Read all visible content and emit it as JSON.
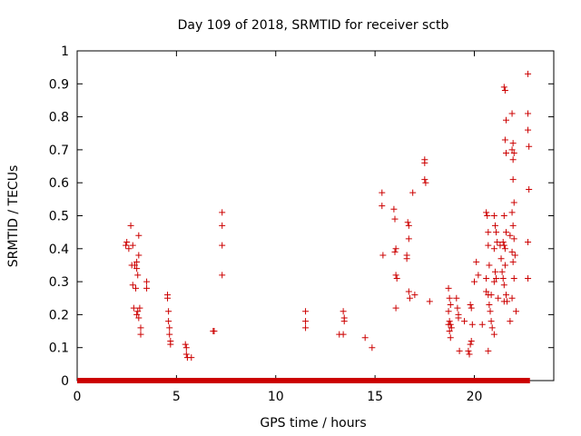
{
  "chart_data": {
    "type": "scatter",
    "title": "Day 109 of 2018, SRMTID for receiver sctb",
    "xlabel": "GPS time / hours",
    "ylabel": "SRMTID / TECUs",
    "xlim": [
      0,
      24
    ],
    "ylim": [
      0,
      1
    ],
    "x_ticks": [
      0,
      5,
      10,
      15,
      20
    ],
    "x_tick_labels": [
      "0",
      "5",
      "10",
      "15",
      "20"
    ],
    "y_ticks": [
      0,
      0.1,
      0.2,
      0.3,
      0.4,
      0.5,
      0.6,
      0.7,
      0.8,
      0.9,
      1
    ],
    "y_tick_labels": [
      "0",
      "0.1",
      "0.2",
      "0.3",
      "0.4",
      "0.5",
      "0.6",
      "0.7",
      "0.8",
      "0.9",
      "1"
    ],
    "grid": false,
    "marker": "+",
    "color": "#cc0000",
    "zero_baseline_range": [
      0,
      22.8
    ],
    "series": [
      {
        "name": "sctb",
        "points": [
          [
            2.45,
            0.41
          ],
          [
            2.5,
            0.42
          ],
          [
            2.7,
            0.47
          ],
          [
            2.75,
            0.35
          ],
          [
            2.8,
            0.29
          ],
          [
            2.85,
            0.22
          ],
          [
            2.9,
            0.35
          ],
          [
            2.95,
            0.28
          ],
          [
            3.0,
            0.36
          ],
          [
            3.0,
            0.34
          ],
          [
            3.05,
            0.32
          ],
          [
            3.05,
            0.21
          ],
          [
            3.1,
            0.38
          ],
          [
            3.1,
            0.44
          ],
          [
            3.1,
            0.19
          ],
          [
            3.15,
            0.22
          ],
          [
            3.2,
            0.16
          ],
          [
            3.2,
            0.14
          ],
          [
            3.5,
            0.3
          ],
          [
            3.5,
            0.28
          ],
          [
            2.6,
            0.4
          ],
          [
            2.8,
            0.41
          ],
          [
            3.0,
            0.2
          ],
          [
            4.55,
            0.26
          ],
          [
            4.55,
            0.25
          ],
          [
            4.6,
            0.21
          ],
          [
            4.6,
            0.18
          ],
          [
            4.65,
            0.16
          ],
          [
            4.65,
            0.14
          ],
          [
            4.7,
            0.12
          ],
          [
            4.7,
            0.11
          ],
          [
            5.45,
            0.11
          ],
          [
            5.5,
            0.1
          ],
          [
            5.5,
            0.08
          ],
          [
            5.55,
            0.07
          ],
          [
            5.75,
            0.07
          ],
          [
            6.85,
            0.15
          ],
          [
            6.9,
            0.15
          ],
          [
            7.3,
            0.51
          ],
          [
            7.3,
            0.47
          ],
          [
            7.3,
            0.41
          ],
          [
            7.3,
            0.32
          ],
          [
            11.5,
            0.21
          ],
          [
            11.5,
            0.18
          ],
          [
            11.5,
            0.16
          ],
          [
            13.2,
            0.14
          ],
          [
            13.4,
            0.21
          ],
          [
            13.45,
            0.19
          ],
          [
            13.45,
            0.18
          ],
          [
            13.4,
            0.14
          ],
          [
            14.5,
            0.13
          ],
          [
            14.85,
            0.1
          ],
          [
            15.35,
            0.57
          ],
          [
            15.35,
            0.53
          ],
          [
            15.4,
            0.38
          ],
          [
            15.95,
            0.52
          ],
          [
            16.0,
            0.49
          ],
          [
            16.0,
            0.39
          ],
          [
            16.05,
            0.4
          ],
          [
            16.05,
            0.32
          ],
          [
            16.1,
            0.31
          ],
          [
            16.05,
            0.22
          ],
          [
            16.6,
            0.38
          ],
          [
            16.65,
            0.48
          ],
          [
            16.7,
            0.47
          ],
          [
            16.7,
            0.43
          ],
          [
            16.6,
            0.37
          ],
          [
            16.7,
            0.27
          ],
          [
            16.75,
            0.25
          ],
          [
            16.9,
            0.57
          ],
          [
            17.0,
            0.26
          ],
          [
            17.5,
            0.67
          ],
          [
            17.5,
            0.66
          ],
          [
            17.5,
            0.61
          ],
          [
            17.55,
            0.6
          ],
          [
            17.75,
            0.24
          ],
          [
            18.7,
            0.28
          ],
          [
            18.75,
            0.25
          ],
          [
            18.8,
            0.23
          ],
          [
            18.7,
            0.21
          ],
          [
            18.75,
            0.18
          ],
          [
            18.7,
            0.17
          ],
          [
            18.8,
            0.17
          ],
          [
            18.75,
            0.15
          ],
          [
            18.8,
            0.13
          ],
          [
            18.85,
            0.16
          ],
          [
            19.1,
            0.25
          ],
          [
            19.15,
            0.22
          ],
          [
            19.2,
            0.19
          ],
          [
            19.2,
            0.2
          ],
          [
            19.25,
            0.09
          ],
          [
            19.5,
            0.18
          ],
          [
            19.7,
            0.09
          ],
          [
            19.75,
            0.08
          ],
          [
            19.8,
            0.11
          ],
          [
            19.85,
            0.12
          ],
          [
            19.8,
            0.23
          ],
          [
            19.85,
            0.22
          ],
          [
            19.9,
            0.17
          ],
          [
            20.0,
            0.3
          ],
          [
            20.1,
            0.36
          ],
          [
            20.2,
            0.32
          ],
          [
            20.4,
            0.17
          ],
          [
            20.6,
            0.51
          ],
          [
            20.65,
            0.5
          ],
          [
            20.7,
            0.45
          ],
          [
            20.7,
            0.41
          ],
          [
            20.75,
            0.35
          ],
          [
            20.6,
            0.31
          ],
          [
            20.7,
            0.26
          ],
          [
            20.75,
            0.23
          ],
          [
            20.8,
            0.21
          ],
          [
            20.85,
            0.18
          ],
          [
            20.9,
            0.16
          ],
          [
            20.7,
            0.09
          ],
          [
            20.85,
            0.26
          ],
          [
            20.6,
            0.27
          ],
          [
            21.0,
            0.5
          ],
          [
            21.05,
            0.47
          ],
          [
            21.1,
            0.45
          ],
          [
            21.15,
            0.42
          ],
          [
            21.0,
            0.4
          ],
          [
            21.05,
            0.33
          ],
          [
            21.1,
            0.31
          ],
          [
            21.0,
            0.3
          ],
          [
            21.2,
            0.25
          ],
          [
            21.0,
            0.14
          ],
          [
            21.3,
            0.41
          ],
          [
            21.35,
            0.37
          ],
          [
            21.5,
            0.89
          ],
          [
            21.55,
            0.88
          ],
          [
            21.6,
            0.79
          ],
          [
            21.55,
            0.73
          ],
          [
            21.6,
            0.69
          ],
          [
            21.5,
            0.5
          ],
          [
            21.6,
            0.45
          ],
          [
            21.45,
            0.42
          ],
          [
            21.5,
            0.41
          ],
          [
            21.55,
            0.4
          ],
          [
            21.4,
            0.33
          ],
          [
            21.45,
            0.31
          ],
          [
            21.5,
            0.29
          ],
          [
            21.6,
            0.26
          ],
          [
            21.65,
            0.24
          ],
          [
            21.5,
            0.24
          ],
          [
            21.55,
            0.35
          ],
          [
            21.9,
            0.81
          ],
          [
            21.9,
            0.7
          ],
          [
            21.95,
            0.72
          ],
          [
            21.95,
            0.67
          ],
          [
            22.0,
            0.69
          ],
          [
            21.95,
            0.61
          ],
          [
            22.0,
            0.54
          ],
          [
            21.9,
            0.51
          ],
          [
            21.95,
            0.47
          ],
          [
            21.8,
            0.44
          ],
          [
            22.0,
            0.43
          ],
          [
            21.9,
            0.39
          ],
          [
            21.95,
            0.36
          ],
          [
            21.8,
            0.18
          ],
          [
            22.0,
            0.31
          ],
          [
            22.1,
            0.21
          ],
          [
            21.9,
            0.25
          ],
          [
            22.05,
            0.38
          ],
          [
            22.7,
            0.93
          ],
          [
            22.7,
            0.81
          ],
          [
            22.7,
            0.76
          ],
          [
            22.75,
            0.71
          ],
          [
            22.75,
            0.58
          ],
          [
            22.7,
            0.42
          ],
          [
            22.7,
            0.31
          ]
        ]
      }
    ]
  }
}
